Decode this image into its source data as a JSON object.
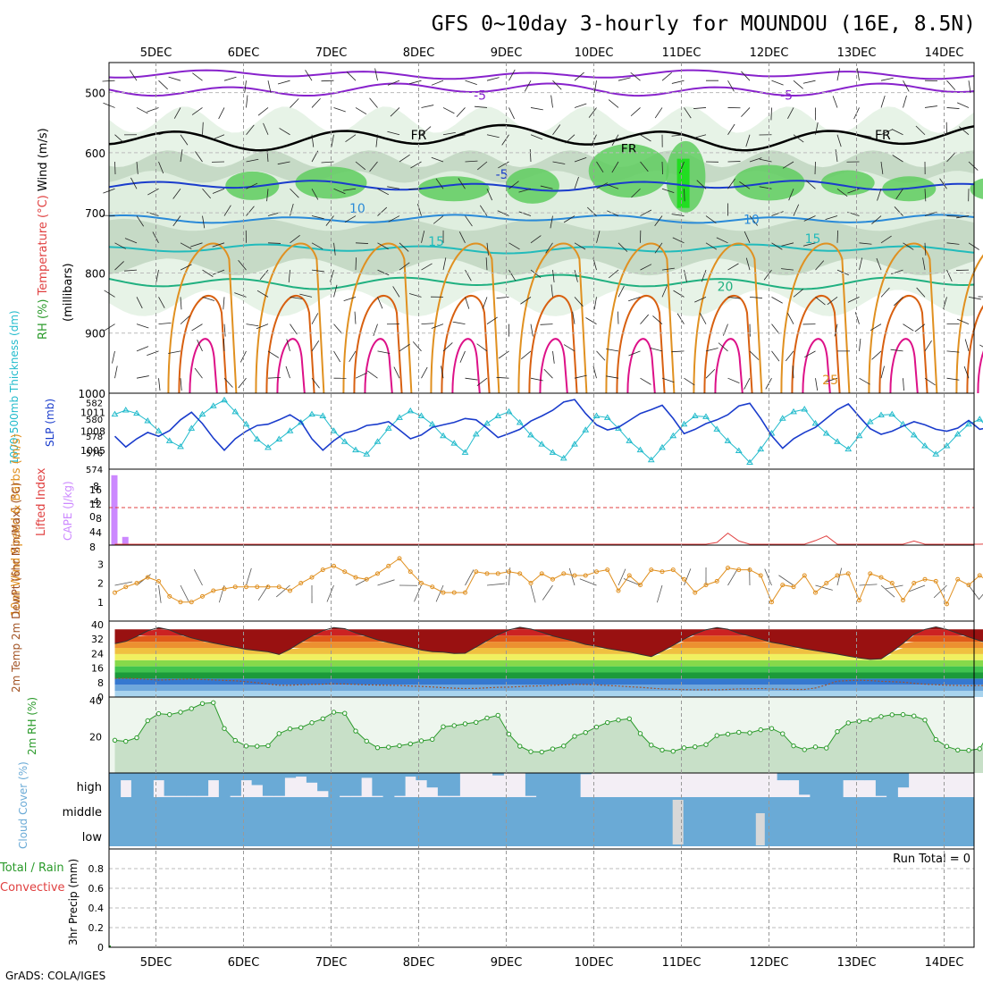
{
  "title": "GFS 0~10day 3-hourly for MOUNDOU (16E, 8.5N)",
  "credit": "GrADS: COLA/IGES",
  "colors": {
    "grid": "#bbbbbb",
    "rh_light": "#e3f1e3",
    "rh_mid": "#bfd5bf",
    "rh_green": "#5fcc5f",
    "rh_bright": "#22dd22",
    "slp": "#1a3ccc",
    "thickness": "#22bbcc",
    "lifted_index": "#e04040",
    "cape": "#cc88ff",
    "wind_speed": "#e09020",
    "rh2m_line": "#2a9a2a",
    "rh2m_fill": "#c8e0c8",
    "cloud": "#6aaad6",
    "cloud_gap": "#f3eef5",
    "cloud_gray": "#d8d8d8"
  },
  "chart_data": {
    "type": "meteogram",
    "days": [
      "5DEC",
      "6DEC",
      "7DEC",
      "8DEC",
      "9DEC",
      "10DEC",
      "11DEC",
      "12DEC",
      "13DEC",
      "14DEC"
    ],
    "steps": 82,
    "upper_air": {
      "ylabel_parts": [
        "RH (%)",
        "Temperature (°C)",
        "Wind (m/s)"
      ],
      "ylabel_units": "(millibars)",
      "yticks": [
        500,
        600,
        700,
        800,
        900,
        1000
      ],
      "ylim": [
        450,
        1000
      ],
      "freezing_level_label": "FR",
      "contour_labels": [
        {
          "text": "-5",
          "t": 3.7,
          "p": 512,
          "color": "#8822cc"
        },
        {
          "text": "-5",
          "t": 7.2,
          "p": 512,
          "color": "#8822cc"
        },
        {
          "text": "FR",
          "t": 3.0,
          "p": 578,
          "color": "#000000"
        },
        {
          "text": "FR",
          "t": 5.4,
          "p": 601,
          "color": "#000000"
        },
        {
          "text": "FR",
          "t": 8.3,
          "p": 578,
          "color": "#000000"
        },
        {
          "text": "-5",
          "t": 3.95,
          "p": 643,
          "color": "#1a3ccc"
        },
        {
          "text": "10",
          "t": 2.3,
          "p": 700,
          "color": "#2a8ad8"
        },
        {
          "text": "10",
          "t": 6.8,
          "p": 718,
          "color": "#2a8ad8"
        },
        {
          "text": "15",
          "t": 3.2,
          "p": 755,
          "color": "#22bbbb"
        },
        {
          "text": "15",
          "t": 7.5,
          "p": 750,
          "color": "#22bbbb"
        },
        {
          "text": "20",
          "t": 6.5,
          "p": 830,
          "color": "#20b080"
        },
        {
          "text": "25",
          "t": 7.7,
          "p": 985,
          "color": "#e09020"
        }
      ],
      "isotherms": [
        {
          "temp": -5,
          "color": "#8822cc",
          "base_p": 495,
          "amp": 8
        },
        {
          "temp": -10,
          "color": "#8822cc",
          "base_p": 470,
          "amp": 5
        },
        {
          "temp": 0,
          "color": "#000000",
          "base_p": 575,
          "amp": 14
        },
        {
          "temp": -5,
          "color": "#1a3ccc",
          "base_p": 655,
          "amp": 6
        },
        {
          "temp": 10,
          "color": "#2a8ad8",
          "base_p": 710,
          "amp": 5
        },
        {
          "temp": 15,
          "color": "#22bbbb",
          "base_p": 760,
          "amp": 5
        },
        {
          "temp": 20,
          "color": "#20b080",
          "base_p": 815,
          "amp": 8
        }
      ]
    },
    "pressure_panel": {
      "ylabel_left": "1000-500mb Thickness (dm)",
      "ylabel_right": "SLP (mb)",
      "thickness_ticks": [
        574,
        576,
        578,
        580,
        582
      ],
      "slp_ticks": [
        1005,
        1008,
        1011
      ],
      "slp": [
        1007.2,
        1005.5,
        1006.8,
        1007.8,
        1007.2,
        1008.1,
        1009.8,
        1011.0,
        1009.2,
        1006.9,
        1005.0,
        1006.8,
        1008.0,
        1008.9,
        1009.1,
        1009.8,
        1010.6,
        1009.5,
        1006.8,
        1005.0,
        1006.5,
        1007.7,
        1008.1,
        1008.9,
        1009.1,
        1009.5,
        1008.2,
        1006.8,
        1007.4,
        1008.6,
        1009.0,
        1009.4,
        1010.0,
        1009.8,
        1008.5,
        1007.0,
        1007.6,
        1008.3,
        1009.6,
        1010.4,
        1011.3,
        1012.6,
        1013.0,
        1010.8,
        1009.0,
        1008.2,
        1008.6,
        1009.7,
        1010.8,
        1011.4,
        1012.1,
        1010.0,
        1007.6,
        1008.3,
        1009.2,
        1009.8,
        1010.6,
        1012.0,
        1012.4,
        1010.0,
        1007.3,
        1005.3,
        1006.8,
        1007.8,
        1008.6,
        1010.0,
        1011.4,
        1012.3,
        1010.3,
        1008.4,
        1007.5,
        1008.0,
        1008.8,
        1009.5,
        1009.0,
        1008.3,
        1008.0,
        1008.5,
        1009.7,
        1008.3,
        1008.6,
        1011.0
      ],
      "thickness": [
        580.6,
        581.1,
        580.7,
        579.8,
        578.6,
        577.4,
        576.7,
        578.9,
        580.6,
        581.6,
        582.3,
        580.9,
        579.4,
        577.6,
        576.6,
        577.6,
        578.6,
        579.6,
        580.6,
        580.4,
        578.6,
        577.3,
        576.3,
        575.8,
        577.3,
        578.9,
        580.2,
        581.0,
        580.4,
        579.4,
        578.0,
        577.1,
        576.0,
        578.2,
        579.5,
        580.4,
        580.9,
        579.6,
        578.1,
        577.0,
        576.0,
        575.3,
        577.0,
        578.7,
        580.4,
        580.2,
        578.9,
        577.4,
        576.3,
        575.1,
        576.6,
        578.0,
        579.4,
        580.4,
        580.3,
        578.8,
        577.4,
        576.2,
        574.8,
        576.4,
        578.3,
        580.1,
        580.9,
        581.2,
        579.5,
        578.3,
        577.3,
        576.4,
        578.0,
        579.7,
        580.5,
        580.6,
        579.4,
        578.1,
        576.8,
        575.8,
        576.8,
        578.2,
        579.4,
        580.0,
        578.7,
        577.0
      ]
    },
    "stability_panel": {
      "ylabel_left": "Lifted Index",
      "ylabel_right": "CAPE (J/kg)",
      "li_ticks": [
        "-8",
        "-4",
        "0",
        "4",
        "8"
      ],
      "cape_ticks": [
        "4",
        "8",
        "12",
        "16"
      ],
      "lifted_index": [
        8.7,
        8.5,
        9.8,
        11.2,
        12.0,
        12.0,
        11.4,
        10.2,
        8.4,
        8.2,
        8.6,
        10.2,
        12.0,
        12.0,
        11.8,
        11.6,
        8.4,
        7.9,
        8.6,
        10.4,
        11.9,
        12.0,
        11.6,
        11.2,
        9.8,
        9.3,
        10.8,
        12.0,
        12.0,
        12.0,
        12.0,
        12.0,
        12.0,
        12.0,
        12.0,
        12.0,
        12.0,
        12.0,
        12.0,
        12.0,
        12.0,
        12.0,
        12.0,
        12.0,
        12.0,
        12.0,
        12.0,
        10.1,
        11.3,
        12.0,
        12.0,
        12.0,
        12.0,
        12.0,
        9.0,
        7.5,
        5.5,
        7.2,
        9.4,
        11.5,
        12.0,
        12.0,
        12.0,
        9.2,
        7.1,
        6.1,
        7.9,
        9.9,
        11.8,
        12.0,
        12.0,
        12.0,
        9.2,
        7.2,
        7.9,
        10.2,
        12.0,
        12.0,
        12.0,
        8.5,
        7.8,
        9.5
      ],
      "cape": [
        17,
        2,
        0,
        0,
        0,
        0,
        0,
        0,
        0,
        0,
        0,
        0,
        0,
        0,
        0,
        0,
        0,
        0,
        0,
        0,
        0,
        0,
        0,
        0,
        0,
        0,
        0,
        0,
        0,
        0,
        0,
        0,
        0,
        0,
        0,
        0,
        0,
        0,
        0,
        0,
        0,
        0,
        0,
        0,
        0,
        0,
        0,
        0,
        0,
        0,
        0,
        0,
        0,
        0,
        0,
        0,
        0,
        0,
        0,
        0,
        0,
        0,
        0,
        0,
        0,
        0,
        0,
        0,
        0,
        0,
        0,
        0,
        0,
        0,
        0,
        0,
        0,
        0,
        0,
        0,
        0,
        0
      ]
    },
    "wind_panel": {
      "ylabel": "10m Wind Speed & Barbs (m/s)",
      "yticks": [
        "1",
        "2",
        "3"
      ],
      "speed": [
        1.5,
        1.8,
        2.0,
        2.3,
        2.1,
        1.3,
        1.0,
        1.0,
        1.3,
        1.6,
        1.7,
        1.8,
        1.8,
        1.8,
        1.8,
        1.8,
        1.6,
        2.0,
        2.3,
        2.7,
        2.9,
        2.6,
        2.3,
        2.2,
        2.5,
        2.9,
        3.3,
        2.6,
        2.0,
        1.8,
        1.5,
        1.5,
        1.5,
        2.6,
        2.5,
        2.5,
        2.6,
        2.5,
        2.0,
        2.5,
        2.2,
        2.5,
        2.4,
        2.4,
        2.6,
        2.7,
        1.6,
        2.4,
        1.9,
        2.7,
        2.6,
        2.7,
        2.2,
        1.5,
        1.9,
        2.1,
        2.8,
        2.7,
        2.7,
        2.4,
        1.0,
        1.9,
        1.8,
        2.4,
        1.5,
        2.0,
        2.4,
        2.5,
        1.1,
        2.5,
        2.3,
        2.0,
        1.1,
        2.0,
        2.2,
        2.1,
        0.9,
        2.2,
        1.9,
        2.4,
        2.0,
        1.5
      ]
    },
    "temp_panel": {
      "ylabel": "2m Temp 2m DewPt (6hr Min/Max) (°C)",
      "yticks": [
        "0",
        "8",
        "16",
        "24",
        "32",
        "40"
      ],
      "temp_max": [
        29.5,
        30.8,
        33.5,
        36.6,
        38.4,
        37.1,
        34.6,
        32.7,
        31.2,
        29.9,
        28.7,
        27.5,
        26.4,
        25.7,
        25.0,
        23.5,
        26.5,
        30.3,
        33.7,
        36.7,
        38.4,
        37.8,
        35.5,
        33.6,
        31.6,
        30.2,
        28.9,
        27.5,
        26.0,
        25.1,
        24.8,
        24.1,
        24.2,
        27.6,
        31.2,
        34.5,
        37.1,
        38.6,
        37.6,
        35.8,
        33.8,
        32.3,
        30.8,
        29.1,
        28.1,
        26.8,
        25.8,
        24.9,
        23.6,
        22.4,
        25.3,
        28.6,
        32.0,
        35.0,
        37.2,
        38.4,
        37.5,
        35.3,
        33.7,
        32.0,
        30.3,
        29.2,
        27.9,
        26.7,
        25.7,
        24.7,
        23.7,
        22.6,
        21.6,
        20.8,
        21.1,
        25.1,
        29.7,
        34.7,
        37.4,
        38.8,
        37.4,
        35.3,
        33.2,
        31.2,
        29.6,
        28.5
      ],
      "dewpoint": [
        10.3,
        10.4,
        10.2,
        9.8,
        9.4,
        9.6,
        9.8,
        10.1,
        9.7,
        9.5,
        9.2,
        9.0,
        8.5,
        7.9,
        7.2,
        6.5,
        6.5,
        6.8,
        7.0,
        7.1,
        7.3,
        7.2,
        7.0,
        6.7,
        6.6,
        6.5,
        6.4,
        6.1,
        5.9,
        5.6,
        5.2,
        4.9,
        4.7,
        4.8,
        5.1,
        5.4,
        5.5,
        5.8,
        6.1,
        6.2,
        6.5,
        6.7,
        7.0,
        6.9,
        6.7,
        6.4,
        6.1,
        5.7,
        5.4,
        4.9,
        4.5,
        4.3,
        4.1,
        4.0,
        4.0,
        4.0,
        4.2,
        4.5,
        4.5,
        4.7,
        4.5,
        4.3,
        4.2,
        4.2,
        5.0,
        6.7,
        8.8,
        9.1,
        9.3,
        9.1,
        8.7,
        8.5,
        8.2,
        7.6,
        7.1,
        6.8,
        6.5,
        6.4,
        6.3,
        6.4,
        6.3,
        6.2
      ]
    },
    "rh_panel": {
      "ylabel": "2m RH (%)",
      "yticks": [
        "20",
        "40"
      ],
      "rh": [
        18.1,
        17.5,
        19.5,
        28.9,
        32.8,
        32.3,
        33.6,
        35.6,
        38.4,
        38.9,
        24.6,
        18.0,
        14.9,
        14.8,
        15.1,
        21.8,
        24.4,
        25.1,
        27.8,
        30.0,
        33.6,
        33.0,
        23.2,
        17.6,
        14.0,
        14.3,
        15.1,
        16.1,
        17.8,
        18.6,
        25.6,
        26.2,
        27.2,
        28.0,
        30.4,
        31.9,
        21.5,
        14.8,
        11.8,
        11.6,
        13.3,
        14.9,
        20.3,
        22.4,
        25.4,
        27.9,
        29.3,
        30.0,
        21.8,
        15.4,
        12.7,
        12.0,
        13.9,
        14.5,
        15.7,
        20.7,
        21.5,
        22.5,
        22.2,
        23.9,
        24.6,
        21.7,
        15.0,
        12.9,
        14.4,
        13.8,
        22.9,
        27.7,
        28.6,
        29.4,
        31.2,
        32.2,
        32.3,
        31.5,
        29.3,
        18.5,
        14.7,
        12.7,
        12.5,
        13.4,
        23.5,
        26.0
      ]
    },
    "cloud_panel": {
      "ylabel": "Cloud Cover (%)",
      "levels": [
        "high",
        "middle",
        "low"
      ],
      "high": [
        100,
        30,
        100,
        100,
        30,
        95,
        95,
        95,
        95,
        30,
        100,
        95,
        30,
        50,
        95,
        95,
        20,
        15,
        40,
        75,
        100,
        95,
        95,
        20,
        95,
        100,
        95,
        15,
        30,
        60,
        95,
        95,
        0,
        0,
        0,
        10,
        0,
        0,
        95,
        100,
        100,
        100,
        100,
        5,
        0,
        0,
        0,
        0,
        0,
        0,
        0,
        0,
        0,
        0,
        0,
        0,
        0,
        0,
        0,
        0,
        0,
        30,
        30,
        90,
        100,
        100,
        100,
        30,
        30,
        30,
        95,
        100,
        60,
        0,
        0,
        0,
        0,
        0,
        0,
        0,
        100,
        0
      ]
    },
    "precip_panel": {
      "ylabel": "3hr Precip (mm)",
      "legend_parts": [
        "Total",
        " / ",
        "Rain",
        "Convective"
      ],
      "yticks": [
        "0",
        "0.2",
        "0.4",
        "0.6",
        "0.8"
      ],
      "ylim": [
        0,
        1
      ],
      "values": [
        0
      ],
      "run_total_label": "Run Total = 0"
    }
  }
}
